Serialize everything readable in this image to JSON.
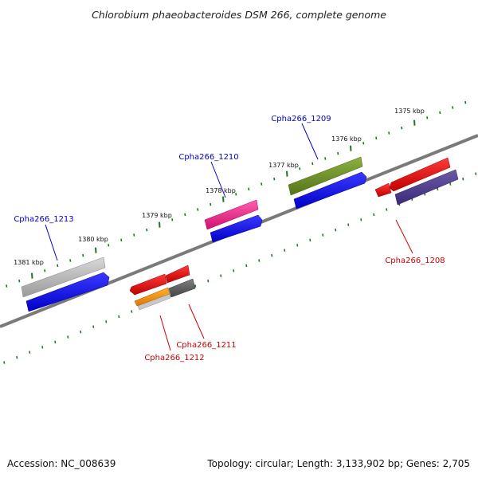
{
  "title": "Chlorobium phaeobacteroides DSM 266, complete genome",
  "footer": {
    "accession": "Accession: NC_008639",
    "summary": "Topology: circular; Length: 3,133,902 bp; Genes: 2,705"
  },
  "colors": {
    "forward_label": "#0000cc",
    "reverse_label": "#cc0000",
    "backbone": "#808080",
    "tick": "#1a7a1a"
  },
  "ticks": [
    {
      "label": "1381 kbp"
    },
    {
      "label": "1380 kbp"
    },
    {
      "label": "1379 kbp"
    },
    {
      "label": "1378 kbp"
    },
    {
      "label": "1377 kbp"
    },
    {
      "label": "1376 kbp"
    },
    {
      "label": "1375 kbp"
    }
  ],
  "genes": [
    {
      "name": "Cpha266_1213",
      "strand": "forward",
      "color": "#b0b0b0"
    },
    {
      "name": "Cpha266_1210",
      "strand": "forward",
      "color": "#e61e8c"
    },
    {
      "name": "Cpha266_1209",
      "strand": "forward",
      "color": "#6b8e23"
    },
    {
      "name": "Cpha266_1208",
      "strand": "reverse",
      "color": "#e60000"
    },
    {
      "name": "Cpha266_1211",
      "strand": "reverse",
      "color": "#5a5a5a"
    },
    {
      "name": "Cpha266_1212",
      "strand": "reverse",
      "color": "#e60000"
    }
  ]
}
